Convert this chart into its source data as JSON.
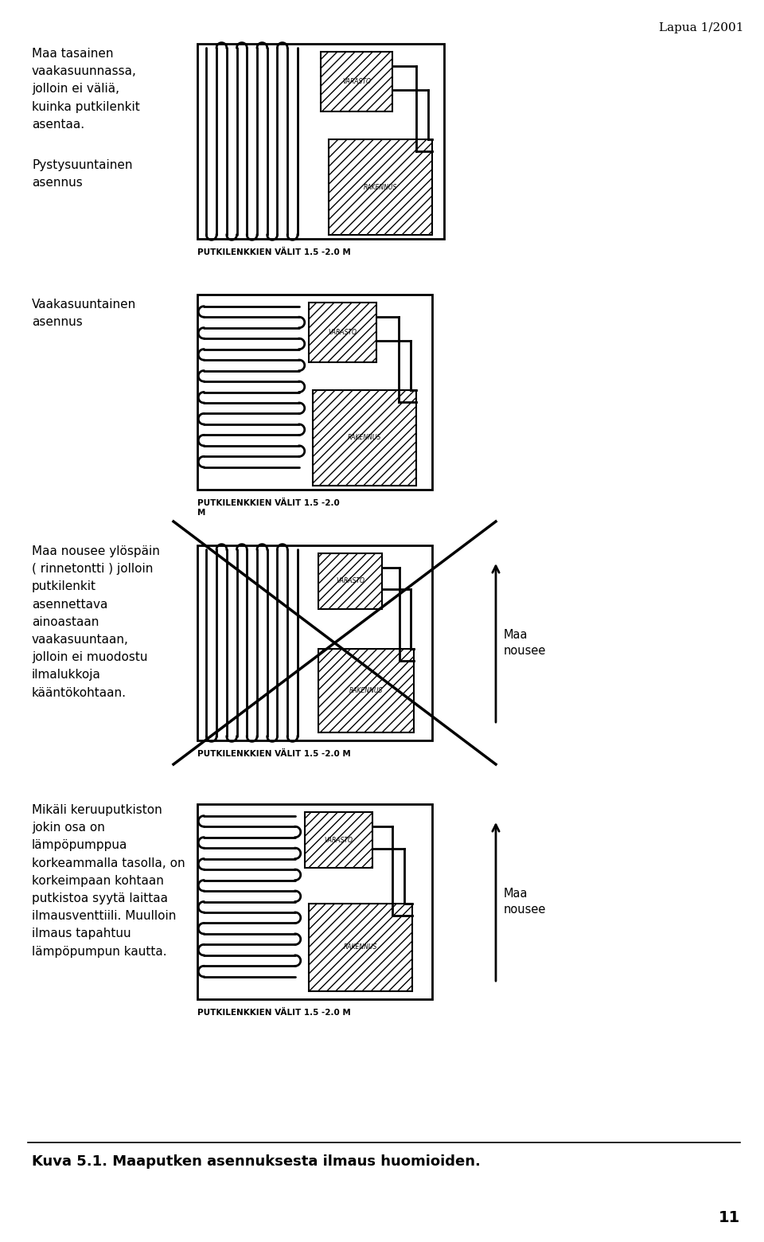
{
  "title_text": "Lapua 1/2001",
  "bg_color": "#ffffff",
  "footer": "Kuva 5.1. Maaputken asennuksesta ilmaus huomioiden.",
  "page_num": "11",
  "diag1_label": "Maa tasainen\nvaakasuunnassa,\njolloin ei väliä,\nkuinka putkilenkit\nasentaa.",
  "diag1_sublabel": "Pystysuuntainen\nasennus",
  "diag1_caption": "PUTKILENKKIEN VÄLIT 1.5 -2.0 M",
  "diag2_label": "Vaakasuuntainen\nasennus",
  "diag2_caption": "PUTKILENKKIEN VÄLIT 1.5 -2.0\nM",
  "diag3_label": "Maa nousee ylöspäin\n( rinnetontti ) jolloin\nputkilenkit\nasennettava\nainoastaan\nvaakasuuntaan,\njolloin ei muodostu\nilmalukkoja\nkääntökohtaan.",
  "diag3_caption": "PUTKILENKKIEN VÄLIT 1.5 -2.0 M",
  "diag4_label": "Mikäli keruuputkiston\njokin osa on\nlämpöpumppua\nkorkeammalla tasolla, on\nkorkeimpaan kohtaan\nputkistoa syytä laittaa\nilmausventtiili. Muulloin\nilmaus tapahtuu\nlämpöpumpun kautta.",
  "diag4_caption": "PUTKILENKKIEN VÄLIT 1.5 -2.0 M",
  "maa_nousee": "Maa\nnousee"
}
